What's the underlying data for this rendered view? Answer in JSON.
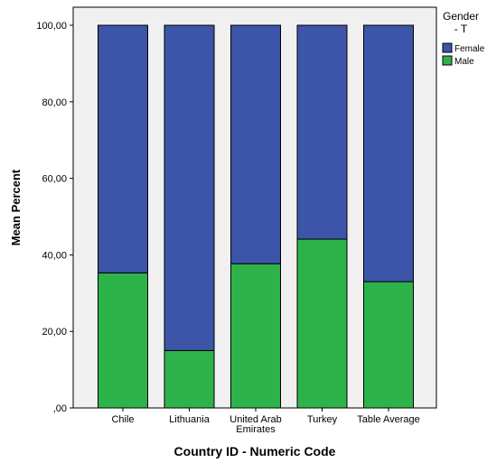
{
  "chart_data": {
    "type": "bar",
    "stacked": true,
    "categories": [
      "Chile",
      "Lithuania",
      "United Arab Emirates",
      "Turkey",
      "Table Average"
    ],
    "category_label_lines": [
      [
        "Chile"
      ],
      [
        "Lithuania"
      ],
      [
        "United Arab",
        "Emirates"
      ],
      [
        "Turkey"
      ],
      [
        "Table Average"
      ]
    ],
    "series": [
      {
        "name": "Male",
        "color": "#2db34a",
        "values": [
          35.3,
          15.0,
          37.7,
          44.1,
          33.0
        ]
      },
      {
        "name": "Female",
        "color": "#3c55a8",
        "values": [
          64.7,
          85.0,
          62.3,
          55.9,
          67.0
        ]
      }
    ],
    "xlabel": "Country ID - Numeric Code",
    "ylabel": "Mean Percent",
    "ylim": [
      0,
      100
    ],
    "yticks": [
      {
        "value": 0,
        "label": ",00"
      },
      {
        "value": 20,
        "label": "20,00"
      },
      {
        "value": 40,
        "label": "40,00"
      },
      {
        "value": 60,
        "label": "60,00"
      },
      {
        "value": 80,
        "label": "80,00"
      },
      {
        "value": 100,
        "label": "100,00"
      }
    ],
    "grid": false,
    "legend": {
      "title_lines": [
        "Gender",
        "- T"
      ],
      "placement": "top-right",
      "entries": [
        "Female",
        "Male"
      ]
    },
    "plot_background": "#f0f0f0"
  }
}
